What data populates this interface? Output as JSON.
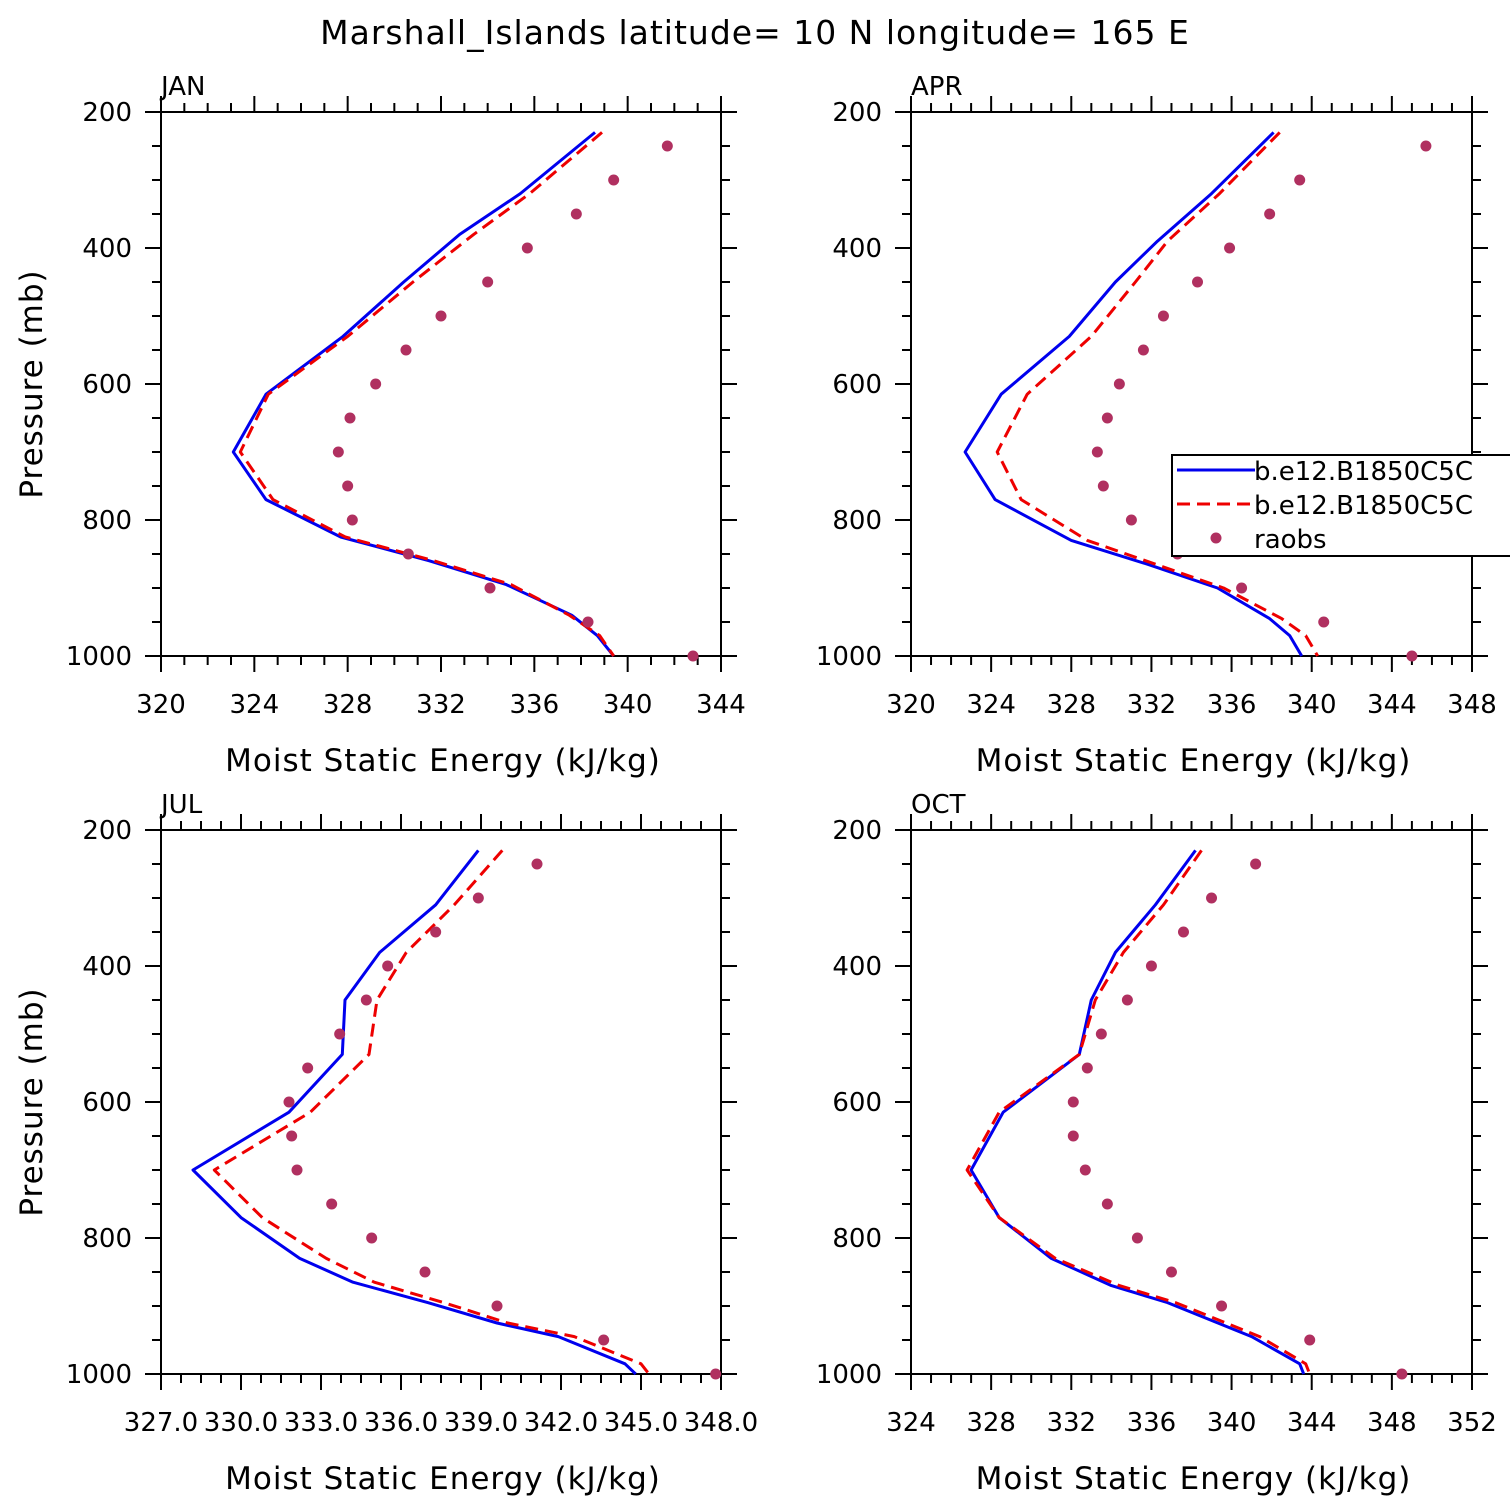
{
  "title": "Marshall_Islands  latitude= 10 N longitude= 165 E",
  "colors": {
    "model1": "#0000ee",
    "model2": "#ee0000",
    "raobs": "#b03060",
    "axis": "#000000"
  },
  "legend": {
    "entries": [
      {
        "label": "b.e12.B1850C5C",
        "style": "solid"
      },
      {
        "label": "b.e12.B1850C5C",
        "style": "dashed"
      },
      {
        "label": "raobs",
        "style": "dots"
      }
    ]
  },
  "chart_data": [
    {
      "type": "line",
      "panel": "JAN",
      "xlabel": "Moist Static Energy (kJ/kg)",
      "ylabel": "Pressure (mb)",
      "xlim": [
        320,
        344
      ],
      "ylim": [
        200,
        1000
      ],
      "y_reversed": true,
      "x_ticks": [
        320,
        324,
        328,
        332,
        336,
        340,
        344
      ],
      "x_tick_labels": [
        "320",
        "324",
        "328",
        "332",
        "336",
        "340",
        "344"
      ],
      "y_ticks": [
        200,
        400,
        600,
        800,
        1000
      ],
      "y_tick_labels": [
        "200",
        "400",
        "600",
        "800",
        "1000"
      ],
      "series": [
        {
          "name": "b.e12.B1850C5C",
          "style": "solid",
          "x": [
            338.6,
            335.4,
            332.8,
            330.4,
            327.8,
            324.5,
            323.1,
            324.5,
            327.7,
            331.5,
            334.8,
            337.6,
            338.7,
            339.4
          ],
          "y": [
            230,
            320,
            380,
            450,
            530,
            615,
            700,
            770,
            825,
            860,
            895,
            940,
            970,
            1000
          ]
        },
        {
          "name": "b.e12.B1850C5C",
          "style": "dashed",
          "x": [
            338.9,
            335.8,
            333.4,
            330.8,
            328.0,
            324.6,
            323.4,
            324.8,
            327.9,
            331.7,
            335.0,
            337.5,
            338.8,
            339.4
          ],
          "y": [
            230,
            320,
            380,
            450,
            530,
            615,
            700,
            770,
            825,
            860,
            895,
            940,
            970,
            1000
          ]
        },
        {
          "name": "raobs",
          "style": "dots",
          "x": [
            341.7,
            339.4,
            337.8,
            335.7,
            334.0,
            332.0,
            330.5,
            329.2,
            328.1,
            327.6,
            328.0,
            328.2,
            330.6,
            334.1,
            338.3,
            342.8
          ],
          "y": [
            250,
            300,
            350,
            400,
            450,
            500,
            550,
            600,
            650,
            700,
            750,
            800,
            850,
            900,
            950,
            1000
          ]
        }
      ]
    },
    {
      "type": "line",
      "panel": "APR",
      "xlabel": "Moist Static Energy (kJ/kg)",
      "ylabel": "",
      "xlim": [
        320,
        348
      ],
      "ylim": [
        200,
        1000
      ],
      "y_reversed": true,
      "x_ticks": [
        320,
        324,
        328,
        332,
        336,
        340,
        344,
        348
      ],
      "x_tick_labels": [
        "320",
        "324",
        "328",
        "332",
        "336",
        "340",
        "344",
        "348"
      ],
      "y_ticks": [
        200,
        400,
        600,
        800,
        1000
      ],
      "y_tick_labels": [
        "200",
        "400",
        "600",
        "800",
        "1000"
      ],
      "series": [
        {
          "name": "b.e12.B1850C5C",
          "style": "solid",
          "x": [
            338.1,
            335.0,
            332.3,
            330.2,
            327.9,
            324.5,
            322.7,
            324.2,
            328.0,
            331.8,
            335.3,
            337.9,
            338.9,
            339.5
          ],
          "y": [
            230,
            320,
            390,
            450,
            530,
            615,
            700,
            770,
            830,
            865,
            900,
            945,
            970,
            1000
          ]
        },
        {
          "name": "b.e12.B1850C5C",
          "style": "dashed",
          "x": [
            338.4,
            335.4,
            332.8,
            331.2,
            329.0,
            325.8,
            324.3,
            325.5,
            328.8,
            332.2,
            335.6,
            338.5,
            339.7,
            340.3
          ],
          "y": [
            230,
            320,
            390,
            450,
            530,
            615,
            700,
            770,
            830,
            865,
            900,
            945,
            970,
            1000
          ]
        },
        {
          "name": "raobs",
          "style": "dots",
          "x": [
            345.7,
            339.4,
            337.9,
            335.9,
            334.3,
            332.6,
            331.6,
            330.4,
            329.8,
            329.3,
            329.6,
            331.0,
            333.3,
            336.5,
            340.6,
            345.0
          ],
          "y": [
            250,
            300,
            350,
            400,
            450,
            500,
            550,
            600,
            650,
            700,
            750,
            800,
            850,
            900,
            950,
            1000
          ]
        }
      ]
    },
    {
      "type": "line",
      "panel": "JUL",
      "xlabel": "Moist Static Energy (kJ/kg)",
      "ylabel": "Pressure (mb)",
      "xlim": [
        327.0,
        348.0
      ],
      "ylim": [
        200,
        1000
      ],
      "y_reversed": true,
      "x_ticks": [
        327.0,
        330.0,
        333.0,
        336.0,
        339.0,
        342.0,
        345.0,
        348.0
      ],
      "x_tick_labels": [
        "327.0",
        "330.0",
        "333.0",
        "336.0",
        "339.0",
        "342.0",
        "345.0",
        "348.0"
      ],
      "y_ticks": [
        200,
        400,
        600,
        800,
        1000
      ],
      "y_tick_labels": [
        "200",
        "400",
        "600",
        "800",
        "1000"
      ],
      "series": [
        {
          "name": "b.e12.B1850C5C",
          "style": "solid",
          "x": [
            338.9,
            337.3,
            335.2,
            333.9,
            333.8,
            331.8,
            328.2,
            330.0,
            332.2,
            334.2,
            337.0,
            339.6,
            341.9,
            344.4,
            344.8
          ],
          "y": [
            230,
            310,
            380,
            450,
            530,
            615,
            700,
            770,
            830,
            865,
            895,
            925,
            945,
            985,
            1000
          ]
        },
        {
          "name": "b.e12.B1850C5C",
          "style": "dashed",
          "x": [
            339.8,
            338.0,
            336.2,
            335.1,
            334.8,
            332.6,
            329.0,
            330.8,
            333.2,
            335.0,
            337.6,
            340.0,
            342.5,
            345.0,
            345.3
          ],
          "y": [
            230,
            310,
            380,
            450,
            530,
            615,
            700,
            770,
            830,
            865,
            895,
            925,
            945,
            985,
            1000
          ]
        },
        {
          "name": "raobs",
          "style": "dots",
          "x": [
            341.1,
            338.9,
            337.3,
            335.5,
            334.7,
            333.7,
            332.5,
            331.8,
            331.9,
            332.1,
            333.4,
            334.9,
            336.9,
            339.6,
            343.6,
            347.8
          ],
          "y": [
            250,
            300,
            350,
            400,
            450,
            500,
            550,
            600,
            650,
            700,
            750,
            800,
            850,
            900,
            950,
            1000
          ]
        }
      ]
    },
    {
      "type": "line",
      "panel": "OCT",
      "xlabel": "Moist Static Energy (kJ/kg)",
      "ylabel": "",
      "xlim": [
        324,
        352
      ],
      "ylim": [
        200,
        1000
      ],
      "y_reversed": true,
      "x_ticks": [
        324,
        328,
        332,
        336,
        340,
        344,
        348,
        352
      ],
      "x_tick_labels": [
        "324",
        "328",
        "332",
        "336",
        "340",
        "344",
        "348",
        "352"
      ],
      "y_ticks": [
        200,
        400,
        600,
        800,
        1000
      ],
      "y_tick_labels": [
        "200",
        "400",
        "600",
        "800",
        "1000"
      ],
      "series": [
        {
          "name": "b.e12.B1850C5C",
          "style": "solid",
          "x": [
            338.2,
            336.2,
            334.2,
            333.0,
            332.4,
            328.6,
            327.0,
            328.4,
            331.0,
            334.0,
            336.8,
            341.0,
            343.4,
            343.6
          ],
          "y": [
            230,
            310,
            380,
            450,
            530,
            615,
            700,
            770,
            830,
            870,
            895,
            945,
            985,
            1000
          ]
        },
        {
          "name": "b.e12.B1850C5C",
          "style": "dashed",
          "x": [
            338.5,
            336.6,
            334.6,
            333.2,
            332.4,
            328.4,
            326.8,
            328.4,
            331.2,
            334.4,
            337.2,
            341.4,
            343.7,
            343.9
          ],
          "y": [
            230,
            310,
            380,
            450,
            530,
            615,
            700,
            770,
            830,
            870,
            895,
            945,
            985,
            1000
          ]
        },
        {
          "name": "raobs",
          "style": "dots",
          "x": [
            341.2,
            339.0,
            337.6,
            336.0,
            334.8,
            333.5,
            332.8,
            332.1,
            332.1,
            332.7,
            333.8,
            335.3,
            337.0,
            339.5,
            343.9,
            348.5
          ],
          "y": [
            250,
            300,
            350,
            400,
            450,
            500,
            550,
            600,
            650,
            700,
            750,
            800,
            850,
            900,
            950,
            1000
          ]
        }
      ]
    }
  ]
}
